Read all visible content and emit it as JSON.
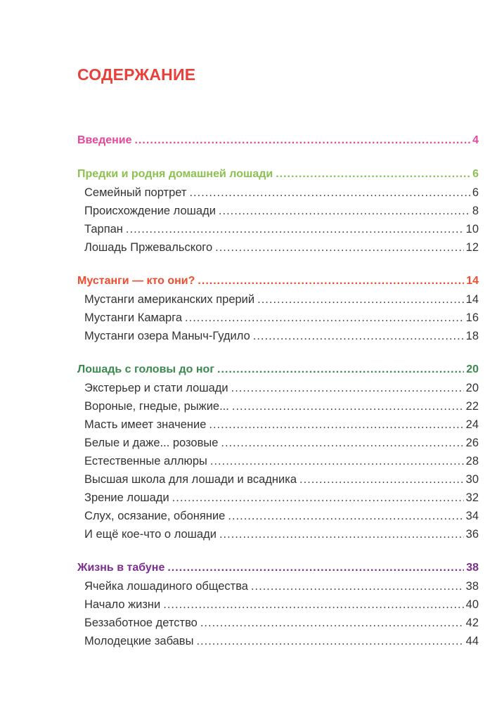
{
  "title": "СОДЕРЖАНИЕ",
  "sections": [
    {
      "title": "Введение",
      "page": "4",
      "color": "#e5489a",
      "items": []
    },
    {
      "title": "Предки и родня домашней лошади",
      "page": "6",
      "color": "#8cc152",
      "items": [
        {
          "title": "Семейный портрет",
          "page": "6"
        },
        {
          "title": "Происхождение лошади",
          "page": "8"
        },
        {
          "title": "Тарпан",
          "page": "10"
        },
        {
          "title": "Лошадь Пржевальского",
          "page": "12"
        }
      ]
    },
    {
      "title": "Мустанги — кто они?",
      "page": "14",
      "color": "#ef4d2e",
      "items": [
        {
          "title": "Мустанги американских прерий",
          "page": "14"
        },
        {
          "title": "Мустанги Камарга",
          "page": "16"
        },
        {
          "title": "Мустанги озера Маныч-Гудило",
          "page": "18"
        }
      ]
    },
    {
      "title": "Лошадь с головы до ног",
      "page": "20",
      "color": "#3a8a4e",
      "items": [
        {
          "title": "Экстерьер и стати лошади",
          "page": "20"
        },
        {
          "title": "Вороные, гнедые, рыжие...",
          "page": "22"
        },
        {
          "title": "Масть имеет значение",
          "page": "24"
        },
        {
          "title": "Белые и даже... розовые",
          "page": "26"
        },
        {
          "title": "Естественные аллюры",
          "page": "28"
        },
        {
          "title": "Высшая школа для лошади и всадника",
          "page": "30"
        },
        {
          "title": "Зрение лошади",
          "page": "32"
        },
        {
          "title": "Слух, осязание, обоняние",
          "page": "34"
        },
        {
          "title": "И ещё кое-что о лошади",
          "page": "36"
        }
      ]
    },
    {
      "title": "Жизнь в табуне",
      "page": "38",
      "color": "#7b2f8e",
      "items": [
        {
          "title": "Ячейка лошадиного общества",
          "page": "38"
        },
        {
          "title": "Начало жизни",
          "page": "40"
        },
        {
          "title": "Беззаботное детство",
          "page": "42"
        },
        {
          "title": "Молодецкие забавы",
          "page": "44"
        }
      ]
    }
  ]
}
